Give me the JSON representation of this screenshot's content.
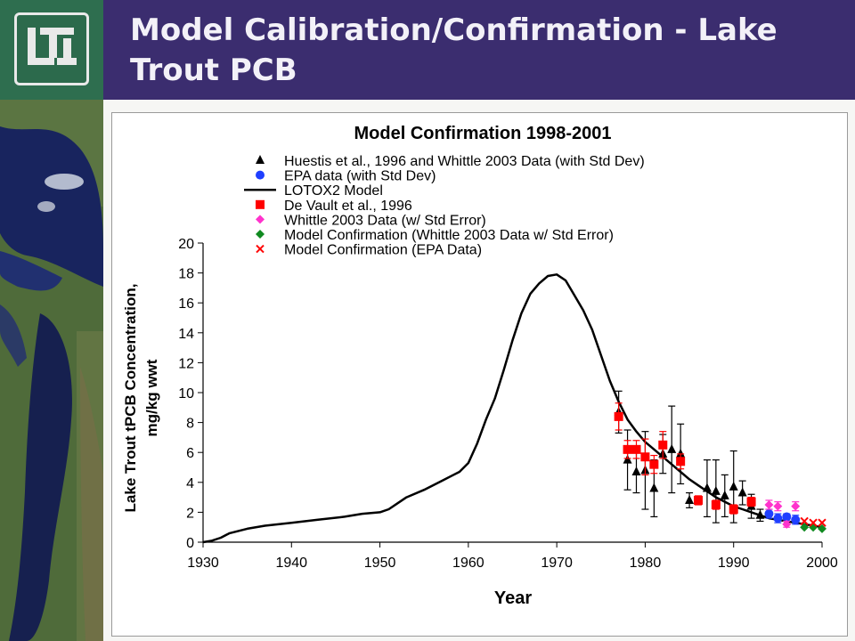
{
  "slide": {
    "title": "Model Calibration/Confirmation - Lake Trout PCB",
    "logo_text": "LTI"
  },
  "colors": {
    "header_bg": "#3b2d6f",
    "title_text": "#f3f1f8",
    "logo_bg": "#2e6e4f"
  },
  "chart_data": {
    "type": "scatter",
    "title": "Model Confirmation 1998-2001",
    "xlabel": "Year",
    "ylabel": "Lake Trout tPCB Concentration, mg/kg wwt",
    "xlim": [
      1930,
      2000
    ],
    "ylim": [
      0,
      20
    ],
    "x_ticks": [
      "1930",
      "1940",
      "1950",
      "1960",
      "1970",
      "1980",
      "1990",
      "2000"
    ],
    "y_ticks": [
      "0",
      "2",
      "4",
      "6",
      "8",
      "10",
      "12",
      "14",
      "16",
      "18",
      "20"
    ],
    "grid": false,
    "legend_position": "top",
    "series": [
      {
        "name": "Huestis et al., 1996 and Whittle 2003 Data (with Std Dev)",
        "marker": "triangle",
        "color": "#000000",
        "error_bars": true,
        "points": [
          {
            "x": 1977,
            "y": 8.7,
            "err": 1.4
          },
          {
            "x": 1978,
            "y": 5.5,
            "err": 2.0
          },
          {
            "x": 1979,
            "y": 4.7,
            "err": 1.4
          },
          {
            "x": 1980,
            "y": 4.8,
            "err": 2.6
          },
          {
            "x": 1981,
            "y": 3.6,
            "err": 1.9
          },
          {
            "x": 1982,
            "y": 5.9,
            "err": 1.3
          },
          {
            "x": 1983,
            "y": 6.2,
            "err": 2.9
          },
          {
            "x": 1984,
            "y": 5.9,
            "err": 2.0
          },
          {
            "x": 1985,
            "y": 2.8,
            "err": 0.5
          },
          {
            "x": 1987,
            "y": 3.6,
            "err": 1.9
          },
          {
            "x": 1988,
            "y": 3.4,
            "err": 2.1
          },
          {
            "x": 1989,
            "y": 3.1,
            "err": 1.4
          },
          {
            "x": 1990,
            "y": 3.7,
            "err": 2.4
          },
          {
            "x": 1991,
            "y": 3.3,
            "err": 0.8
          },
          {
            "x": 1992,
            "y": 2.4,
            "err": 0.8
          },
          {
            "x": 1993,
            "y": 1.8,
            "err": 0.4
          }
        ]
      },
      {
        "name": "EPA data (with Std Dev)",
        "marker": "circle",
        "color": "#1f3fff",
        "error_bars": true,
        "points": [
          {
            "x": 1994,
            "y": 1.9,
            "err": 0.3
          },
          {
            "x": 1995,
            "y": 1.6,
            "err": 0.3
          },
          {
            "x": 1996,
            "y": 1.7,
            "err": 0.2
          },
          {
            "x": 1997,
            "y": 1.5,
            "err": 0.3
          }
        ]
      },
      {
        "name": "LOTOX2 Model",
        "marker": "line",
        "color": "#000000",
        "error_bars": false,
        "points": [
          {
            "x": 1930,
            "y": 0.0
          },
          {
            "x": 1931,
            "y": 0.1
          },
          {
            "x": 1932,
            "y": 0.3
          },
          {
            "x": 1933,
            "y": 0.6
          },
          {
            "x": 1935,
            "y": 0.9
          },
          {
            "x": 1937,
            "y": 1.1
          },
          {
            "x": 1940,
            "y": 1.3
          },
          {
            "x": 1943,
            "y": 1.5
          },
          {
            "x": 1946,
            "y": 1.7
          },
          {
            "x": 1948,
            "y": 1.9
          },
          {
            "x": 1950,
            "y": 2.0
          },
          {
            "x": 1951,
            "y": 2.2
          },
          {
            "x": 1952,
            "y": 2.6
          },
          {
            "x": 1953,
            "y": 3.0
          },
          {
            "x": 1955,
            "y": 3.5
          },
          {
            "x": 1957,
            "y": 4.1
          },
          {
            "x": 1959,
            "y": 4.7
          },
          {
            "x": 1960,
            "y": 5.3
          },
          {
            "x": 1961,
            "y": 6.6
          },
          {
            "x": 1962,
            "y": 8.2
          },
          {
            "x": 1963,
            "y": 9.6
          },
          {
            "x": 1964,
            "y": 11.5
          },
          {
            "x": 1965,
            "y": 13.5
          },
          {
            "x": 1966,
            "y": 15.3
          },
          {
            "x": 1967,
            "y": 16.6
          },
          {
            "x": 1968,
            "y": 17.3
          },
          {
            "x": 1969,
            "y": 17.8
          },
          {
            "x": 1970,
            "y": 17.9
          },
          {
            "x": 1971,
            "y": 17.5
          },
          {
            "x": 1972,
            "y": 16.5
          },
          {
            "x": 1973,
            "y": 15.5
          },
          {
            "x": 1974,
            "y": 14.2
          },
          {
            "x": 1975,
            "y": 12.5
          },
          {
            "x": 1976,
            "y": 10.8
          },
          {
            "x": 1977,
            "y": 9.4
          },
          {
            "x": 1978,
            "y": 8.2
          },
          {
            "x": 1979,
            "y": 7.4
          },
          {
            "x": 1980,
            "y": 6.7
          },
          {
            "x": 1981,
            "y": 6.2
          },
          {
            "x": 1982,
            "y": 5.7
          },
          {
            "x": 1983,
            "y": 5.2
          },
          {
            "x": 1984,
            "y": 4.7
          },
          {
            "x": 1985,
            "y": 4.2
          },
          {
            "x": 1986,
            "y": 3.8
          },
          {
            "x": 1987,
            "y": 3.4
          },
          {
            "x": 1988,
            "y": 3.0
          },
          {
            "x": 1989,
            "y": 2.7
          },
          {
            "x": 1990,
            "y": 2.4
          },
          {
            "x": 1991,
            "y": 2.2
          },
          {
            "x": 1992,
            "y": 2.0
          },
          {
            "x": 1993,
            "y": 1.8
          },
          {
            "x": 1994,
            "y": 1.6
          },
          {
            "x": 1995,
            "y": 1.5
          },
          {
            "x": 1996,
            "y": 1.4
          },
          {
            "x": 1997,
            "y": 1.3
          },
          {
            "x": 1998,
            "y": 1.2
          },
          {
            "x": 1999,
            "y": 1.1
          },
          {
            "x": 2000,
            "y": 1.0
          }
        ]
      },
      {
        "name": "De Vault et al., 1996",
        "marker": "square",
        "color": "#ff0000",
        "error_bars": true,
        "points": [
          {
            "x": 1977,
            "y": 8.4,
            "err": 0.9
          },
          {
            "x": 1978,
            "y": 6.2,
            "err": 0.6
          },
          {
            "x": 1979,
            "y": 6.2,
            "err": 0.6
          },
          {
            "x": 1980,
            "y": 5.7,
            "err": 1.2
          },
          {
            "x": 1981,
            "y": 5.2,
            "err": 0.6
          },
          {
            "x": 1982,
            "y": 6.5,
            "err": 0.9
          },
          {
            "x": 1984,
            "y": 5.4,
            "err": 0.5
          },
          {
            "x": 1986,
            "y": 2.8,
            "err": 0.3
          },
          {
            "x": 1988,
            "y": 2.5,
            "err": 0.3
          },
          {
            "x": 1990,
            "y": 2.2,
            "err": 0.3
          },
          {
            "x": 1992,
            "y": 2.7,
            "err": 0.3
          }
        ]
      },
      {
        "name": "Whittle 2003 Data (w/ Std Error)",
        "marker": "diamond",
        "color": "#ff33cc",
        "error_bars": true,
        "points": [
          {
            "x": 1994,
            "y": 2.5,
            "err": 0.3
          },
          {
            "x": 1995,
            "y": 2.4,
            "err": 0.3
          },
          {
            "x": 1996,
            "y": 1.2,
            "err": 0.2
          },
          {
            "x": 1997,
            "y": 2.4,
            "err": 0.3
          }
        ]
      },
      {
        "name": "Model Confirmation (Whittle 2003 Data w/ Std Error)",
        "marker": "diamond",
        "color": "#108a20",
        "error_bars": false,
        "points": [
          {
            "x": 1998,
            "y": 1.0
          },
          {
            "x": 1999,
            "y": 1.0
          },
          {
            "x": 2000,
            "y": 0.9
          }
        ]
      },
      {
        "name": "Model Confirmation (EPA Data)",
        "marker": "x",
        "color": "#ff0000",
        "error_bars": false,
        "points": [
          {
            "x": 1998,
            "y": 1.4
          },
          {
            "x": 1999,
            "y": 1.3
          },
          {
            "x": 2000,
            "y": 1.3
          }
        ]
      }
    ]
  }
}
